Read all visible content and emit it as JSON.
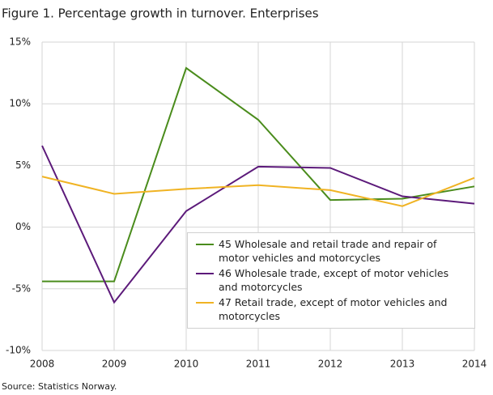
{
  "title": "Figure 1. Percentage growth in turnover. Enterprises",
  "source": "Source: Statistics Norway.",
  "chart_data": {
    "type": "line",
    "categories": [
      "2008",
      "2009",
      "2010",
      "2011",
      "2012",
      "2013",
      "2014"
    ],
    "series": [
      {
        "name": "45 Wholesale and retail trade and repair of motor vehicles and motorcycles",
        "color": "#4a8c1c",
        "values": [
          -4.4,
          -4.4,
          12.9,
          8.7,
          2.2,
          2.3,
          3.3
        ]
      },
      {
        "name": "46 Wholesale trade, except of motor vehicles and motorcycles",
        "color": "#5c1a7a",
        "values": [
          6.6,
          -6.1,
          1.3,
          4.9,
          4.8,
          2.5,
          1.9
        ]
      },
      {
        "name": "47 Retail trade, except of motor vehicles and motorcycles",
        "color": "#f0b323",
        "values": [
          4.1,
          2.7,
          3.1,
          3.4,
          3.0,
          1.7,
          4.0
        ]
      }
    ],
    "ylim": [
      -10,
      15
    ],
    "yticks": [
      {
        "value": -10,
        "label": "-10%"
      },
      {
        "value": -5,
        "label": "-5%"
      },
      {
        "value": 0,
        "label": "0%"
      },
      {
        "value": 5,
        "label": "5%"
      },
      {
        "value": 10,
        "label": "10%"
      },
      {
        "value": 15,
        "label": "15%"
      }
    ],
    "grid": true
  }
}
